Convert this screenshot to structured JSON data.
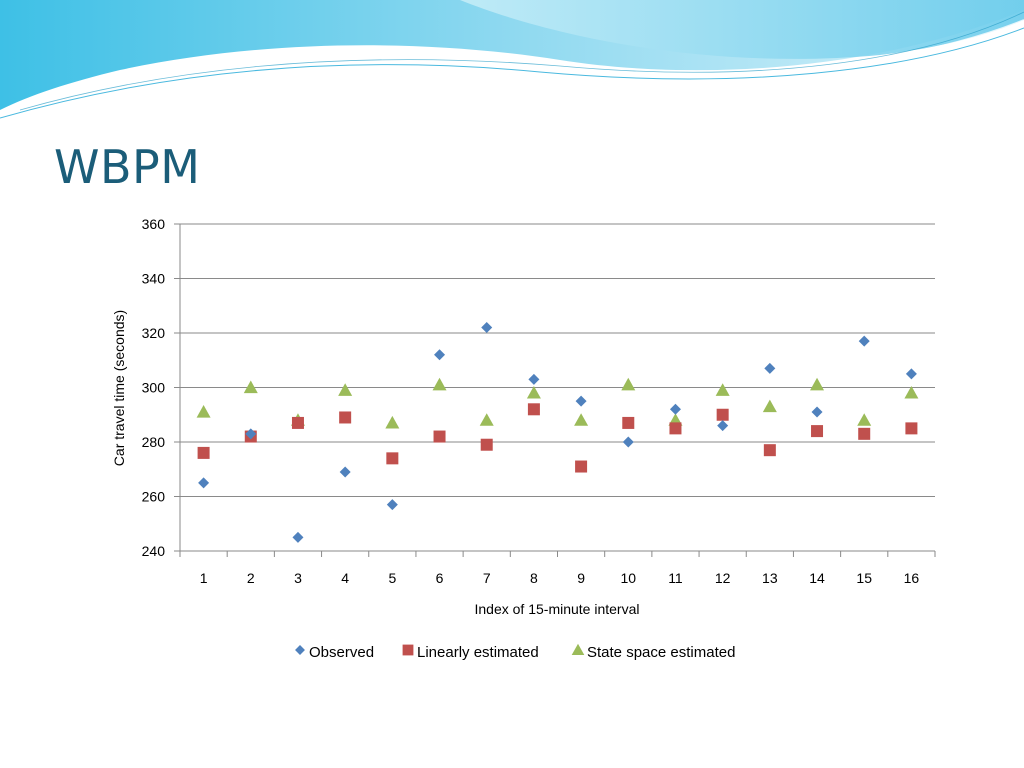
{
  "slide": {
    "title": "WBPM"
  },
  "colors": {
    "title": "#1b5d79",
    "banner_dark": "#5bc6e8",
    "banner_light": "#bfeaf7",
    "grid": "#8a8a8a"
  },
  "chart_data": {
    "type": "scatter",
    "title": "",
    "xlabel": "Index of 15-minute interval",
    "ylabel": "Car travel time (seconds)",
    "categories": [
      "1",
      "2",
      "3",
      "4",
      "5",
      "6",
      "7",
      "8",
      "9",
      "10",
      "11",
      "12",
      "13",
      "14",
      "15",
      "16"
    ],
    "ylim": [
      240,
      360
    ],
    "yticks": [
      240,
      260,
      280,
      300,
      320,
      340,
      360
    ],
    "grid": true,
    "legend_position": "bottom",
    "series": [
      {
        "name": "Observed",
        "marker": "diamond",
        "color": "#4f81bd",
        "values": [
          265,
          283,
          245,
          269,
          257,
          312,
          322,
          303,
          295,
          280,
          292,
          286,
          307,
          291,
          317,
          305
        ]
      },
      {
        "name": "Linearly estimated",
        "marker": "square",
        "color": "#c0504d",
        "values": [
          276,
          282,
          287,
          289,
          274,
          282,
          279,
          292,
          271,
          287,
          285,
          290,
          277,
          284,
          283,
          285
        ]
      },
      {
        "name": "State space estimated",
        "marker": "triangle",
        "color": "#9bbb59",
        "values": [
          291,
          300,
          288,
          299,
          287,
          301,
          288,
          298,
          288,
          301,
          288,
          299,
          293,
          301,
          288,
          298
        ]
      }
    ]
  }
}
